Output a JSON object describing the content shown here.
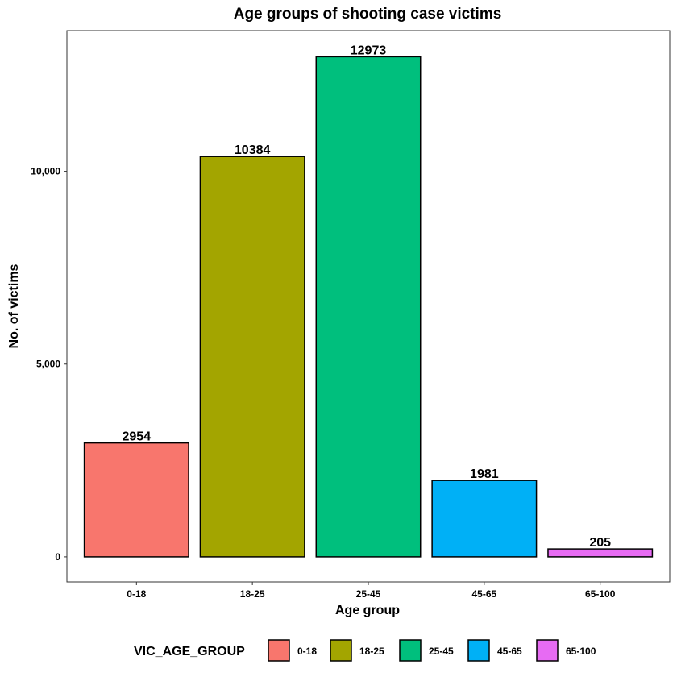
{
  "chart_data": {
    "type": "bar",
    "title": "Age groups of shooting case victims",
    "xlabel": "Age group",
    "ylabel": "No. of victims",
    "categories": [
      "0-18",
      "18-25",
      "25-45",
      "45-65",
      "65-100"
    ],
    "values": [
      2954,
      10384,
      12973,
      1981,
      205
    ],
    "data_labels": [
      "2954",
      "10384",
      "12973",
      "1981",
      "205"
    ],
    "colors": [
      "#F8766D",
      "#A3A500",
      "#00BF7D",
      "#00B0F6",
      "#E76BF3"
    ],
    "y_ticks": [
      0,
      5000,
      10000
    ],
    "y_tick_labels": [
      "0",
      "5,000",
      "10,000"
    ],
    "ylim": [
      -650,
      13650
    ],
    "grid": false,
    "legend": {
      "title": "VIC_AGE_GROUP",
      "position": "bottom",
      "entries": [
        "0-18",
        "18-25",
        "25-45",
        "45-65",
        "65-100"
      ]
    }
  }
}
